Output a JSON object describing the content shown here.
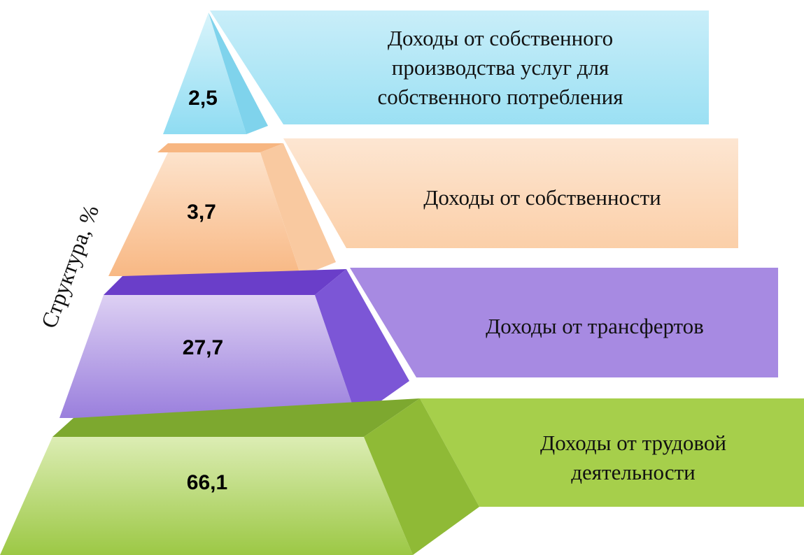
{
  "axis_label": "Структура, %",
  "levels": [
    {
      "label_lines": [
        "Доходы от собственного",
        "производства услуг для",
        "собственного потребления"
      ],
      "value": "2,5"
    },
    {
      "label_lines": [
        "Доходы от собственности"
      ],
      "value": "3,7"
    },
    {
      "label_lines": [
        "Доходы от трансфертов"
      ],
      "value": "27,7"
    },
    {
      "label_lines": [
        "Доходы от трудовой",
        "деятельности"
      ],
      "value": "66,1"
    }
  ]
}
